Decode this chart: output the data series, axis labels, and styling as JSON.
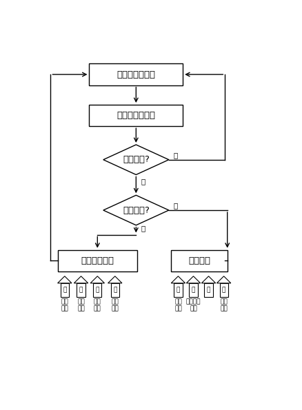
{
  "bg_color": "#ffffff",
  "line_color": "#000000",
  "text_color": "#000000",
  "fig_width": 4.38,
  "fig_height": 5.95,
  "detect_label": "炉顶温度的探测",
  "analyze_label": "炉况的判断分析",
  "diamond1_label": "顶温正常?",
  "diamond2_label": "顶温偏低?",
  "lower_label": "上、下部调剂",
  "upper_label": "上部调剂",
  "yes_label": "是",
  "no_label": "否",
  "lower_arrows": [
    {
      "label1": "协",
      "label2": "布料\n控制"
    },
    {
      "label1": "同",
      "label2": "喷吹\n煤粉"
    },
    {
      "label1": "作",
      "label2": "提高\n风温"
    },
    {
      "label1": "用",
      "label2": "缩小\n风口"
    }
  ],
  "upper_arrows": [
    {
      "label1": "协",
      "label2": "减小\n批重"
    },
    {
      "label1": "同",
      "label2": "控制装料\n制度"
    },
    {
      "label1": "作",
      "label2": ""
    },
    {
      "label1": "用",
      "label2": "炉顶\n打水"
    }
  ]
}
